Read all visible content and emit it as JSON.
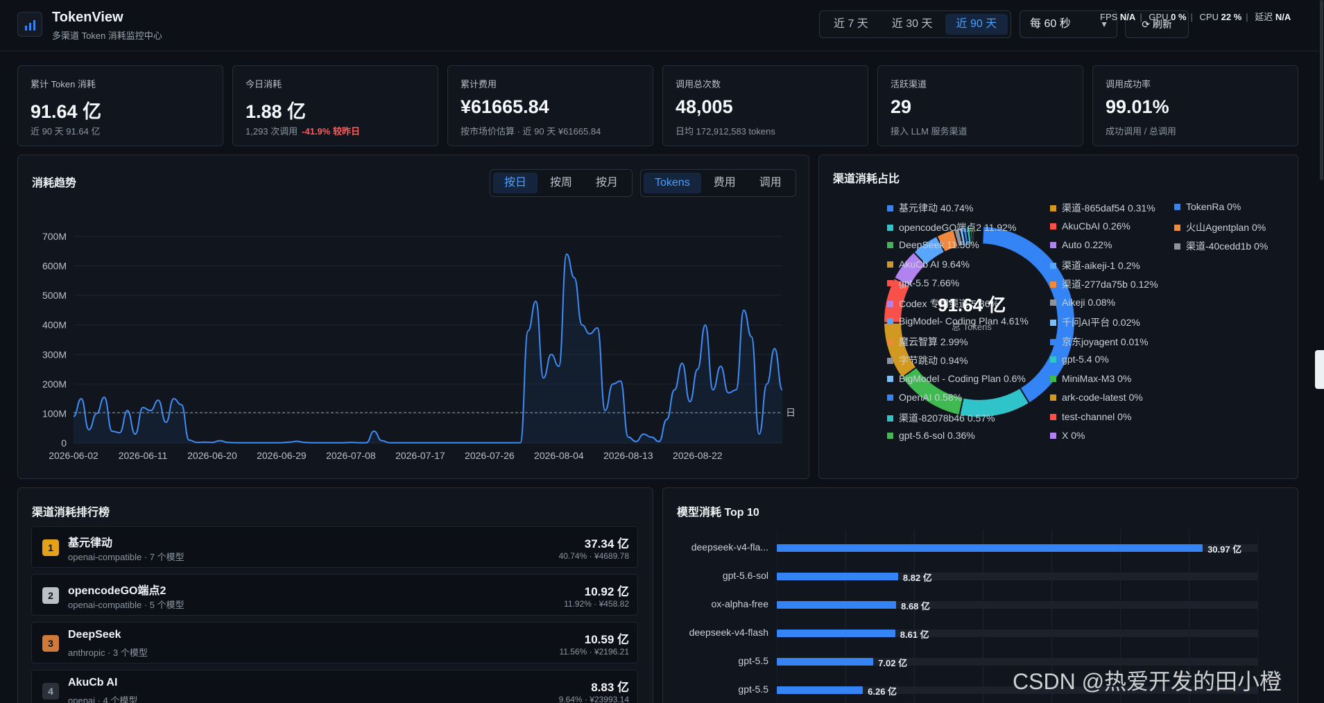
{
  "header": {
    "title": "TokenView",
    "subtitle": "多渠道 Token 消耗监控中心",
    "range_options": [
      "近 7 天",
      "近 30 天",
      "近 90 天"
    ],
    "range_active": 2,
    "interval_value": "每 60 秒",
    "refresh_label": "刷新",
    "perf": {
      "fps_label": "FPS",
      "fps_value": "N/A",
      "gpu_label": "GPU",
      "gpu_value": "0 %",
      "cpu_label": "CPU",
      "cpu_value": "22 %",
      "latency_label": "延迟",
      "latency_value": "N/A"
    }
  },
  "stats": [
    {
      "label": "累计 Token 消耗",
      "value": "91.64 亿",
      "sub": "近 90 天 91.64 亿",
      "sub_neg": ""
    },
    {
      "label": "今日消耗",
      "value": "1.88 亿",
      "sub": "1,293 次调用",
      "sub_neg": "-41.9% 较昨日"
    },
    {
      "label": "累计费用",
      "value": "¥61665.84",
      "sub": "按市场价估算 · 近 90 天 ¥61665.84",
      "sub_neg": ""
    },
    {
      "label": "调用总次数",
      "value": "48,005",
      "sub": "日均 172,912,583 tokens",
      "sub_neg": ""
    },
    {
      "label": "活跃渠道",
      "value": "29",
      "sub": "接入 LLM 服务渠道",
      "sub_neg": ""
    },
    {
      "label": "调用成功率",
      "value": "99.01%",
      "sub": "成功调用 / 总调用",
      "sub_neg": ""
    }
  ],
  "trend": {
    "title": "消耗趋势",
    "granularity": [
      "按日",
      "按周",
      "按月"
    ],
    "granularity_active": 0,
    "metric": [
      "Tokens",
      "费用",
      "调用"
    ],
    "metric_active": 0,
    "avg_marker": "日"
  },
  "chart_data": [
    {
      "type": "line",
      "title": "消耗趋势",
      "y_ticks": [
        "0",
        "100M",
        "200M",
        "300M",
        "400M",
        "500M",
        "600M",
        "700M"
      ],
      "ylim": [
        0,
        700
      ],
      "x_ticks": [
        "2026-06-02",
        "2026-06-11",
        "2026-06-20",
        "2026-06-29",
        "2026-07-08",
        "2026-07-17",
        "2026-07-26",
        "2026-08-04",
        "2026-08-13",
        "2026-08-22"
      ],
      "x_start": "2026-06-02",
      "average": 103,
      "series": [
        {
          "values": [
            90,
            150,
            45,
            100,
            155,
            40,
            35,
            110,
            30,
            120,
            110,
            145,
            70,
            150,
            130,
            10,
            2,
            3,
            2,
            8,
            2,
            1,
            1,
            1,
            1,
            1,
            1,
            1,
            3,
            6,
            2,
            1,
            1,
            1,
            1,
            1,
            2,
            1,
            1,
            40,
            8,
            1,
            1,
            1,
            1,
            1,
            1,
            1,
            1,
            1,
            1,
            1,
            1,
            1,
            1,
            1,
            1,
            1,
            1,
            380,
            480,
            220,
            300,
            260,
            640,
            560,
            400,
            370,
            390,
            110,
            200,
            210,
            20,
            5,
            30,
            20,
            5,
            80,
            180,
            270,
            140,
            250,
            400,
            180,
            260,
            170,
            180,
            450,
            360,
            30,
            200,
            320,
            180
          ]
        }
      ],
      "grid": true
    },
    {
      "type": "pie",
      "title": "渠道消耗占比",
      "center_value": "91.64 亿",
      "center_label": "总 Tokens",
      "slices": [
        {
          "label": "基元律动",
          "value": 40.74,
          "color": "#3584f6"
        },
        {
          "label": "opencodeGO端点2",
          "value": 11.92,
          "color": "#2ec4c9"
        },
        {
          "label": "DeepSeek",
          "value": 11.56,
          "color": "#3fb950"
        },
        {
          "label": "AkuCb AI",
          "value": 9.64,
          "color": "#d29922"
        },
        {
          "label": "gpt-5.5",
          "value": 7.66,
          "color": "#f85149"
        },
        {
          "label": "Codex 专用渠道",
          "value": 5.36,
          "color": "#b083f0"
        },
        {
          "label": "BigModel- Coding Plan",
          "value": 4.61,
          "color": "#58a6ff"
        },
        {
          "label": "魔云智算",
          "value": 2.99,
          "color": "#f0883e"
        },
        {
          "label": "字节跳动",
          "value": 0.94,
          "color": "#8b949e"
        },
        {
          "label": "BigModel - Coding Plan",
          "value": 0.6,
          "color": "#79c0ff"
        },
        {
          "label": "OpenAI",
          "value": 0.58,
          "color": "#3584f6"
        },
        {
          "label": "渠道-82078b46",
          "value": 0.57,
          "color": "#2ec4c9"
        },
        {
          "label": "gpt-5.6-sol",
          "value": 0.36,
          "color": "#3fb950"
        },
        {
          "label": "渠道-865daf54",
          "value": 0.31,
          "color": "#d29922"
        },
        {
          "label": "AkuCbAI",
          "value": 0.26,
          "color": "#f85149"
        },
        {
          "label": "Auto",
          "value": 0.22,
          "color": "#b083f0"
        },
        {
          "label": "渠道-aikeji-1",
          "value": 0.2,
          "color": "#58a6ff"
        },
        {
          "label": "渠道-277da75b",
          "value": 0.12,
          "color": "#f0883e"
        },
        {
          "label": "Aikeji",
          "value": 0.08,
          "color": "#8b949e"
        },
        {
          "label": "千问AI平台",
          "value": 0.02,
          "color": "#79c0ff"
        },
        {
          "label": "京东joyagent",
          "value": 0.01,
          "color": "#3584f6"
        },
        {
          "label": "gpt-5.4",
          "value": 0,
          "color": "#2ec4c9"
        },
        {
          "label": "MiniMax-M3",
          "value": 0,
          "color": "#3fb950"
        },
        {
          "label": "ark-code-latest",
          "value": 0,
          "color": "#d29922"
        },
        {
          "label": "test-channel",
          "value": 0,
          "color": "#f85149"
        },
        {
          "label": "X",
          "value": 0,
          "color": "#b083f0"
        },
        {
          "label": "TokenRa",
          "value": 0,
          "color": "#3584f6"
        },
        {
          "label": "火山Agentplan",
          "value": 0,
          "color": "#f0883e"
        },
        {
          "label": "渠道-40cedd1b",
          "value": 0,
          "color": "#8b949e"
        }
      ]
    },
    {
      "type": "bar",
      "title": "模型消耗 Top 10",
      "categories": [
        "deepseek-v4-fla...",
        "gpt-5.6-sol",
        "ox-alpha-free",
        "deepseek-v4-flash",
        "gpt-5.5",
        "gpt-5.5"
      ],
      "values": [
        30.97,
        8.82,
        8.68,
        8.61,
        7.02,
        6.26
      ],
      "value_labels": [
        "30.97 亿",
        "8.82 亿",
        "8.68 亿",
        "8.61 亿",
        "7.02 亿",
        "6.26 亿"
      ],
      "xlim": [
        0,
        35
      ]
    }
  ],
  "share": {
    "title": "渠道消耗占比",
    "legend": [
      "基元律动  40.74%",
      "opencodeGO端点2  11.92%",
      "DeepSeek  11.56%",
      "AkuCb AI  9.64%",
      "gpt-5.5  7.66%",
      "Codex 专用渠道  5.36%",
      "BigModel- Coding Plan  4.61%",
      "魔云智算  2.99%",
      "字节跳动  0.94%",
      "BigModel - Coding Plan  0.6%",
      "OpenAI  0.58%",
      "渠道-82078b46  0.57%",
      "gpt-5.6-sol  0.36%",
      "渠道-865daf54  0.31%",
      "AkuCbAI  0.26%",
      "Auto  0.22%",
      "渠道-aikeji-1  0.2%",
      "渠道-277da75b  0.12%",
      "Aikeji  0.08%",
      "千问AI平台  0.02%",
      "京东joyagent  0.01%",
      "gpt-5.4  0%",
      "MiniMax-M3  0%",
      "ark-code-latest  0%",
      "test-channel  0%",
      "X  0%",
      "TokenRa  0%",
      "火山Agentplan  0%",
      "渠道-40cedd1b  0%"
    ]
  },
  "ranking": {
    "title": "渠道消耗排行榜",
    "rows": [
      {
        "rank": "1",
        "name": "基元律动",
        "meta": "openai-compatible · 7 个模型",
        "value": "37.34 亿",
        "sub": "40.74% · ¥4689.78",
        "badge_color": "#e3a21a"
      },
      {
        "rank": "2",
        "name": "opencodeGO端点2",
        "meta": "openai-compatible · 5 个模型",
        "value": "10.92 亿",
        "sub": "11.92% · ¥458.82",
        "badge_color": "#b9c0c8"
      },
      {
        "rank": "3",
        "name": "DeepSeek",
        "meta": "anthropic · 3 个模型",
        "value": "10.59 亿",
        "sub": "11.56% · ¥2196.21",
        "badge_color": "#d07a3a"
      },
      {
        "rank": "4",
        "name": "AkuCb AI",
        "meta": "openai · 4 个模型",
        "value": "8.83 亿",
        "sub": "9.64% · ¥23993.14",
        "badge_color": "#2a313b"
      }
    ]
  },
  "models": {
    "title": "模型消耗 Top 10"
  },
  "watermark": "CSDN @热爱开发的田小橙"
}
